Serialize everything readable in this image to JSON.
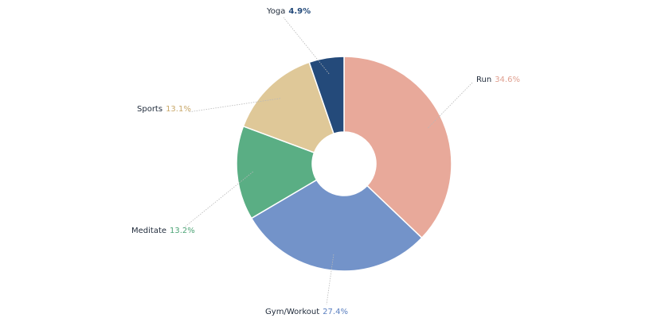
{
  "chart_data": {
    "type": "donut",
    "categories": [
      "Run",
      "Gym/Workout",
      "Meditate",
      "Sports",
      "Yoga"
    ],
    "values": [
      34.6,
      27.4,
      13.2,
      13.1,
      4.9
    ],
    "value_labels": [
      "34.6%",
      "27.4%",
      "13.2%",
      "13.1%",
      "4.9%"
    ],
    "colors": [
      "#e8a99a",
      "#7393c9",
      "#5aae84",
      "#dfc898",
      "#244a7a"
    ],
    "label_colors": [
      "#e0a090",
      "#5a7fc0",
      "#4ea577",
      "#c9a86a",
      "#244a7a"
    ]
  }
}
